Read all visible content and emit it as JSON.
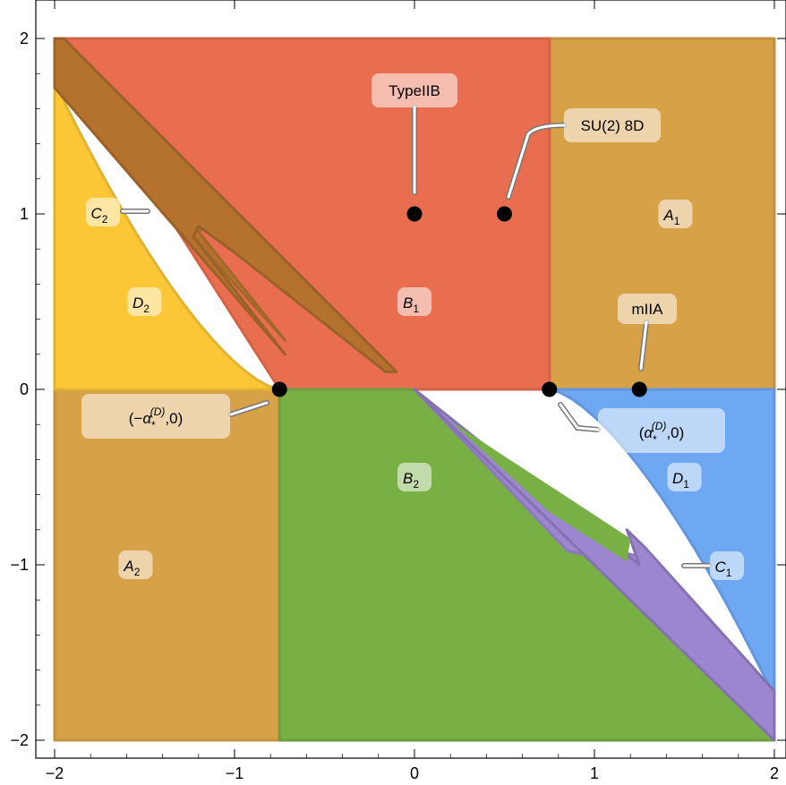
{
  "chart_data": {
    "type": "region",
    "title": "",
    "xlabel": "",
    "ylabel": "",
    "xlim": [
      -2,
      2
    ],
    "ylim": [
      -2,
      2
    ],
    "x_ticks": [
      -2,
      -1,
      0,
      1,
      2
    ],
    "y_ticks": [
      -2,
      -1,
      0,
      1,
      2
    ],
    "x_tick_labels": [
      "−2",
      "−1",
      "0",
      "1",
      "2"
    ],
    "y_tick_labels": [
      "−2",
      "−1",
      "0",
      "1",
      "2"
    ],
    "colors": {
      "A": "#d7a148",
      "B1": "#e96e50",
      "B2": "#78b046",
      "C": "#b5722f",
      "C1": "#9c86d0",
      "D2": "#fbc736",
      "D1": "#6ea7f2",
      "point": "#000000"
    },
    "regions": [
      {
        "name": "A1",
        "label_main": "A",
        "label_sub": "1",
        "label_at": [
          1.45,
          1.0
        ]
      },
      {
        "name": "A2",
        "label_main": "A",
        "label_sub": "2",
        "label_at": [
          -1.55,
          -1.0
        ]
      },
      {
        "name": "B1",
        "label_main": "B",
        "label_sub": "1",
        "label_at": [
          0.0,
          0.5
        ]
      },
      {
        "name": "B2",
        "label_main": "B",
        "label_sub": "2",
        "label_at": [
          0.0,
          -0.5
        ]
      },
      {
        "name": "C1",
        "label_main": "C",
        "label_sub": "1"
      },
      {
        "name": "C2",
        "label_main": "C",
        "label_sub": "2"
      },
      {
        "name": "D1",
        "label_main": "D",
        "label_sub": "1",
        "label_at": [
          1.5,
          -0.5
        ]
      },
      {
        "name": "D2",
        "label_main": "D",
        "label_sub": "2",
        "label_at": [
          -1.5,
          0.5
        ]
      }
    ],
    "points": [
      {
        "name": "TypeIIB",
        "x": 0.0,
        "y": 1.0
      },
      {
        "name": "SU(2) 8D",
        "x": 0.5,
        "y": 1.0
      },
      {
        "name": "mIIA",
        "x": 1.25,
        "y": 0.0
      },
      {
        "name": "alpha-star-pos",
        "x": 0.75,
        "y": 0.0
      },
      {
        "name": "alpha-star-neg",
        "x": -0.75,
        "y": 0.0
      }
    ],
    "callouts": {
      "typeiib": "TypeIIB",
      "su2": "SU(2) 8D",
      "miia": "mIIA",
      "alpha_neg_open": "(−",
      "alpha_pos_open": "(",
      "alpha_sym": "α",
      "alpha_sub": "*",
      "alpha_sup": "(D)",
      "alpha_close": ",0)"
    }
  }
}
